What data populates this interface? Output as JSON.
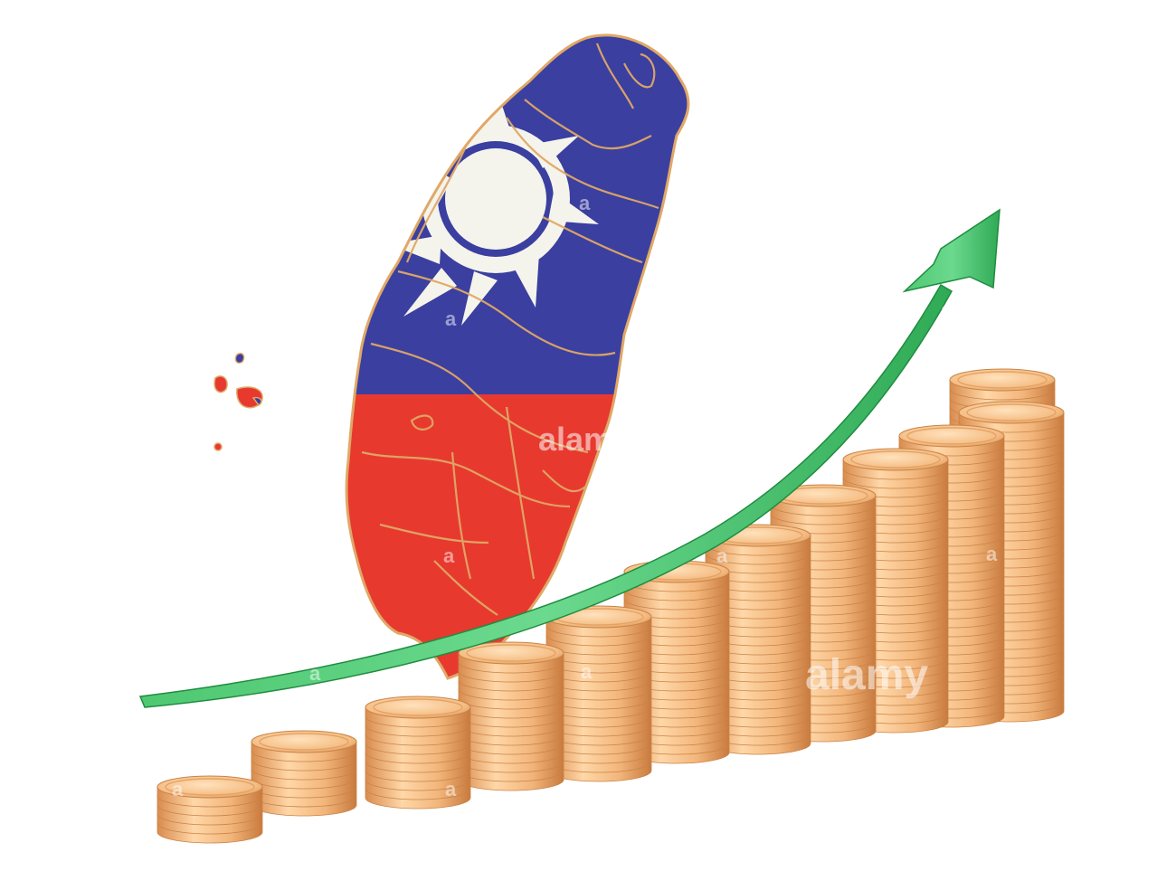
{
  "watermark": {
    "text_main": "alamy",
    "text_island": "alam",
    "glyph": "a"
  },
  "colors": {
    "flag_blue": "#3b3fa0",
    "flag_red": "#e8392f",
    "flag_white": "#f4f4ec",
    "border_gold": "#e0a867",
    "coin_light": "#ffd7a8",
    "coin_mid": "#f2b57a",
    "coin_dark": "#d98c4e",
    "arrow_light": "#7ee3a0",
    "arrow_dark": "#25a04a"
  },
  "coin_stacks": [
    {
      "coins": 5
    },
    {
      "coins": 7
    },
    {
      "coins": 10
    },
    {
      "coins": 14
    },
    {
      "coins": 17
    },
    {
      "coins": 20
    },
    {
      "coins": 23
    },
    {
      "coins": 26
    },
    {
      "coins": 29
    },
    {
      "coins": 31
    },
    {
      "coins": 33
    },
    {
      "coins": 36
    }
  ]
}
